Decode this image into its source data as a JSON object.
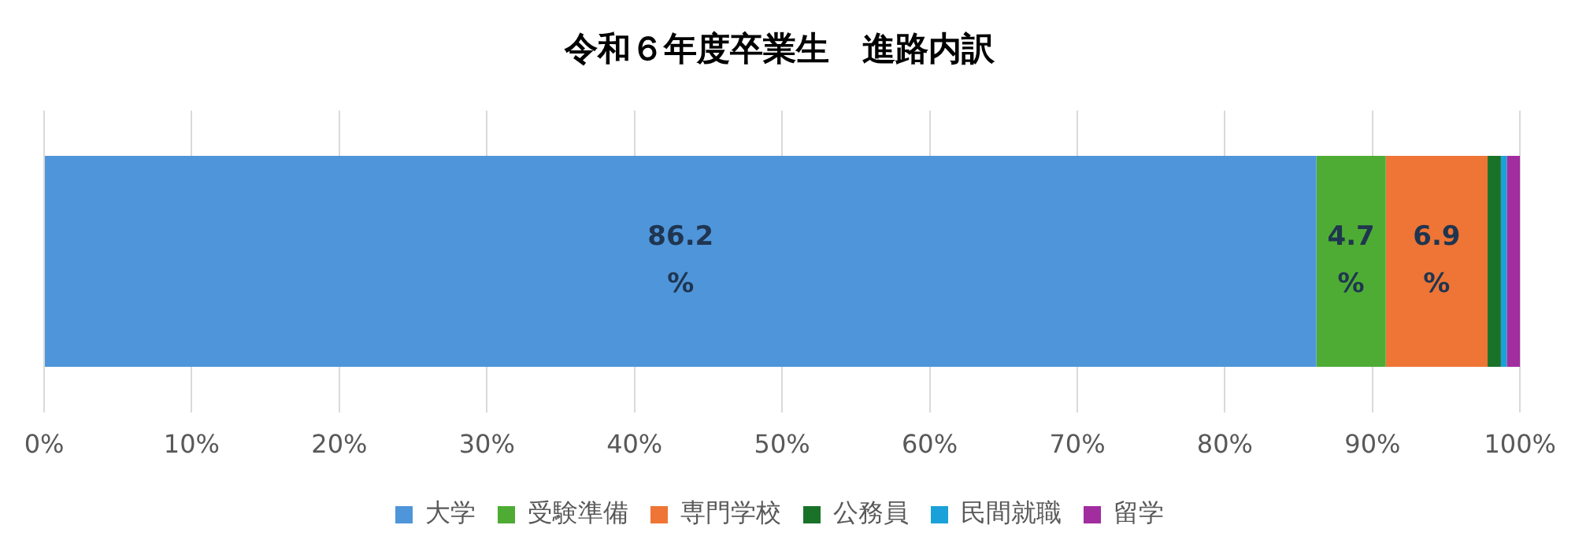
{
  "chart_data": {
    "type": "bar",
    "title": "令和６年度卒業生　進路内訳",
    "orientation": "horizontal",
    "stacked": true,
    "categories": [
      null
    ],
    "series": [
      {
        "name": "大学",
        "color": "#4f95da",
        "values": [
          86.2
        ],
        "value_labels": [
          "86.2%"
        ]
      },
      {
        "name": "受験準備",
        "color": "#4eac34",
        "values": [
          4.7
        ],
        "value_labels": [
          "4.7%"
        ]
      },
      {
        "name": "専門学校",
        "color": "#ee7535",
        "values": [
          6.9
        ],
        "value_labels": [
          "6.9%"
        ]
      },
      {
        "name": "公務員",
        "color": "#1a7229",
        "values": [
          0.9
        ]
      },
      {
        "name": "民間就職",
        "color": "#1ba1d9",
        "values": [
          0.4
        ]
      },
      {
        "name": "留学",
        "color": "#a12d9f",
        "values": [
          0.9
        ]
      }
    ],
    "xlim": [
      0,
      100
    ],
    "xticks": [
      {
        "value": 0,
        "label": "0%"
      },
      {
        "value": 10,
        "label": "10%"
      },
      {
        "value": 20,
        "label": "20%"
      },
      {
        "value": 30,
        "label": "30%"
      },
      {
        "value": 40,
        "label": "40%"
      },
      {
        "value": 50,
        "label": "50%"
      },
      {
        "value": 60,
        "label": "60%"
      },
      {
        "value": 70,
        "label": "70%"
      },
      {
        "value": 80,
        "label": "80%"
      },
      {
        "value": 90,
        "label": "90%"
      },
      {
        "value": 100,
        "label": "100%"
      }
    ],
    "grid": "x",
    "legend": "bottom"
  }
}
